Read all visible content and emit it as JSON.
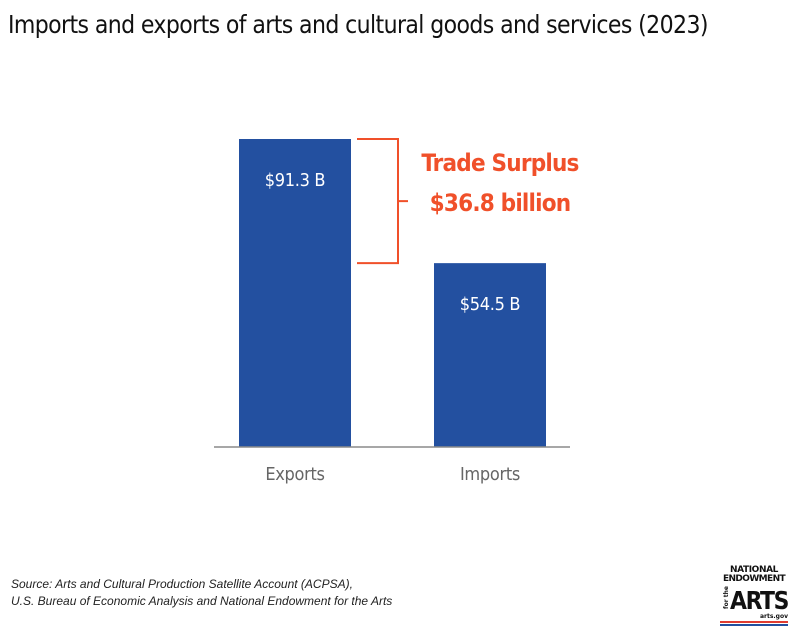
{
  "title": "Imports and exports of arts and cultural goods and services (2023)",
  "chart_data": {
    "type": "bar",
    "categories": [
      "Exports",
      "Imports"
    ],
    "values": [
      91.3,
      54.5
    ],
    "value_labels": [
      "$91.3 B",
      "$54.5 B"
    ],
    "unit": "billion US dollars",
    "bar_color": "#2350a0",
    "ylim": [
      0,
      91.3
    ],
    "grid": false,
    "legend": "none",
    "annotation": {
      "line1": "Trade Surplus",
      "line2": "$36.8 billion",
      "value": 36.8,
      "color": "#f0502a"
    }
  },
  "source": {
    "line1": "Source: Arts and Cultural Production Satellite Account (ACPSA),",
    "line2": "U.S. Bureau of Economic Analysis and National Endowment for the Arts"
  },
  "logo": {
    "line1": "NATIONAL",
    "line2": "ENDOWMENT",
    "for_the": "for the",
    "arts": "ARTS",
    "url": "arts.gov"
  }
}
